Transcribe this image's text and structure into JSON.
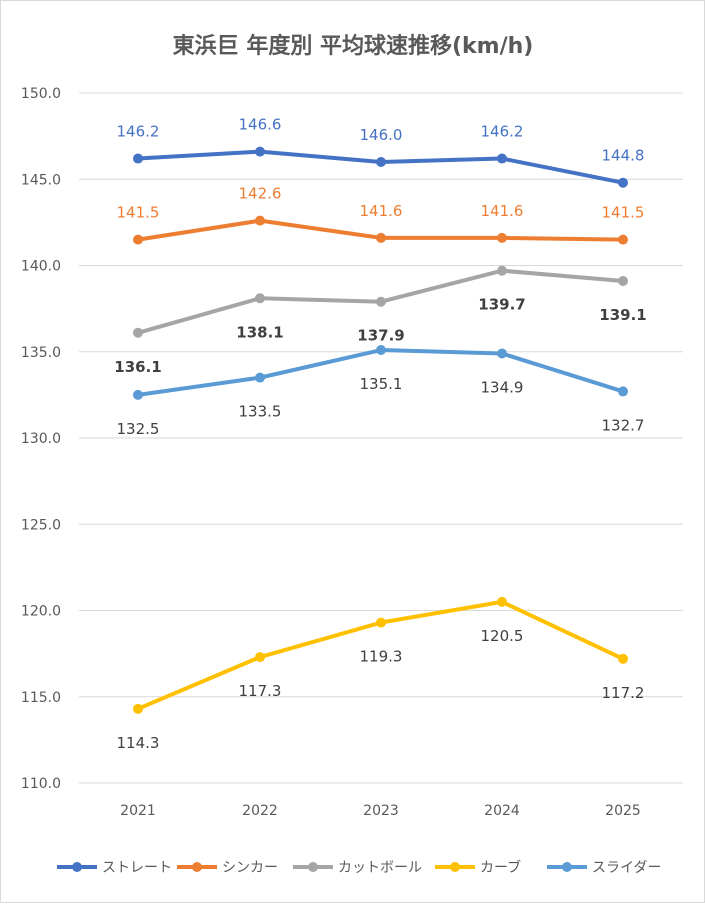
{
  "chart_data": {
    "type": "line",
    "title": "東浜巨 年度別 平均球速推移(km/h)",
    "categories": [
      "2021",
      "2022",
      "2023",
      "2024",
      "2025"
    ],
    "ylim": [
      110,
      150
    ],
    "yticks": [
      "110.0",
      "115.0",
      "120.0",
      "125.0",
      "130.0",
      "135.0",
      "140.0",
      "145.0",
      "150.0"
    ],
    "grid": true,
    "legend_position": "bottom",
    "series": [
      {
        "name": "ストレート",
        "color": "#4472C4",
        "values": [
          146.2,
          146.6,
          146.0,
          146.2,
          144.8
        ],
        "labels": [
          "146.2",
          "146.6",
          "146.0",
          "146.2",
          "144.8"
        ],
        "label_pos": "above",
        "label_color": "#4472C4",
        "label_bold": false
      },
      {
        "name": "シンカー",
        "color": "#ED7D31",
        "values": [
          141.5,
          142.6,
          141.6,
          141.6,
          141.5
        ],
        "labels": [
          "141.5",
          "142.6",
          "141.6",
          "141.6",
          "141.5"
        ],
        "label_pos": "above",
        "label_color": "#ED7D31",
        "label_bold": false
      },
      {
        "name": "カットボール",
        "color": "#A5A5A5",
        "values": [
          136.1,
          138.1,
          137.9,
          139.7,
          139.1
        ],
        "labels": [
          "136.1",
          "138.1",
          "137.9",
          "139.7",
          "139.1"
        ],
        "label_pos": "below",
        "label_color": "#404040",
        "label_bold": true
      },
      {
        "name": "カーブ",
        "color": "#FFC000",
        "values": [
          114.3,
          117.3,
          119.3,
          120.5,
          117.2
        ],
        "labels": [
          "114.3",
          "117.3",
          "119.3",
          "120.5",
          "117.2"
        ],
        "label_pos": "below",
        "label_color": "#404040",
        "label_bold": false
      },
      {
        "name": "スライダー",
        "color": "#5B9BD5",
        "values": [
          132.5,
          133.5,
          135.1,
          134.9,
          132.7
        ],
        "labels": [
          "132.5",
          "133.5",
          "135.1",
          "134.9",
          "132.7"
        ],
        "label_pos": "below",
        "label_color": "#404040",
        "label_bold": false
      }
    ]
  }
}
